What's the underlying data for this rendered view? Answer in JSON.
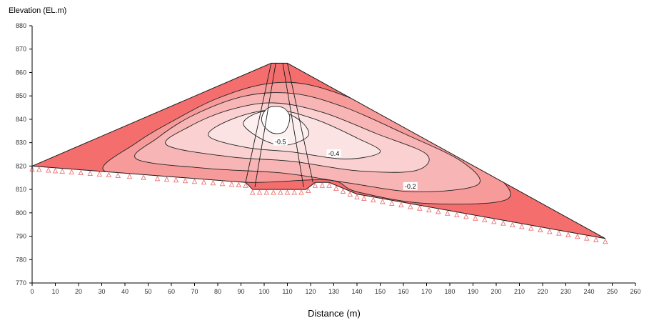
{
  "chart_data": {
    "type": "contour",
    "title": "",
    "xlabel": "Distance (m)",
    "ylabel": "Elevation (EL.m)",
    "xlim": [
      0,
      260
    ],
    "ylim": [
      770,
      880
    ],
    "xticks": [
      0,
      10,
      20,
      30,
      40,
      50,
      60,
      70,
      80,
      90,
      100,
      110,
      120,
      130,
      140,
      150,
      160,
      170,
      180,
      190,
      200,
      210,
      220,
      230,
      240,
      250,
      260
    ],
    "yticks": [
      770,
      780,
      790,
      800,
      810,
      820,
      830,
      840,
      850,
      860,
      870,
      880
    ],
    "dam_outline": [
      {
        "x": 0,
        "y": 820
      },
      {
        "x": 103,
        "y": 864
      },
      {
        "x": 110,
        "y": 864
      },
      {
        "x": 247,
        "y": 789
      },
      {
        "x": 140,
        "y": 808
      },
      {
        "x": 128,
        "y": 813
      },
      {
        "x": 122,
        "y": 813
      },
      {
        "x": 118,
        "y": 810
      },
      {
        "x": 95,
        "y": 810
      },
      {
        "x": 92,
        "y": 813
      },
      {
        "x": 0,
        "y": 820
      }
    ],
    "core_zone": [
      {
        "x": 92,
        "y": 813
      },
      {
        "x": 103,
        "y": 864
      },
      {
        "x": 110,
        "y": 864
      },
      {
        "x": 121,
        "y": 813
      }
    ],
    "core_inner_lines": [
      [
        {
          "x": 96,
          "y": 811
        },
        {
          "x": 105,
          "y": 864
        }
      ],
      [
        {
          "x": 117,
          "y": 811
        },
        {
          "x": 108,
          "y": 864
        }
      ]
    ],
    "contours": [
      {
        "level": -0.1,
        "label": "",
        "fill": "#f69a9a",
        "points": [
          {
            "x": 31,
            "y": 818
          },
          {
            "x": 45,
            "y": 830
          },
          {
            "x": 62,
            "y": 840
          },
          {
            "x": 80,
            "y": 849
          },
          {
            "x": 100,
            "y": 855
          },
          {
            "x": 118,
            "y": 855
          },
          {
            "x": 140,
            "y": 848
          },
          {
            "x": 165,
            "y": 836
          },
          {
            "x": 195,
            "y": 820
          },
          {
            "x": 205,
            "y": 806
          },
          {
            "x": 170,
            "y": 804
          },
          {
            "x": 140,
            "y": 809
          },
          {
            "x": 128,
            "y": 814
          },
          {
            "x": 95,
            "y": 813
          },
          {
            "x": 65,
            "y": 815
          }
        ]
      },
      {
        "level": -0.2,
        "label": "-0.2",
        "fill": "#f8b5b5",
        "points": [
          {
            "x": 45,
            "y": 823
          },
          {
            "x": 54,
            "y": 832
          },
          {
            "x": 70,
            "y": 842
          },
          {
            "x": 92,
            "y": 850
          },
          {
            "x": 113,
            "y": 851
          },
          {
            "x": 135,
            "y": 845
          },
          {
            "x": 160,
            "y": 834
          },
          {
            "x": 185,
            "y": 822
          },
          {
            "x": 192,
            "y": 812
          },
          {
            "x": 165,
            "y": 809
          },
          {
            "x": 135,
            "y": 813
          },
          {
            "x": 108,
            "y": 817
          },
          {
            "x": 75,
            "y": 819
          }
        ]
      },
      {
        "level": -0.3,
        "label": "",
        "fill": "#fad0d0",
        "points": [
          {
            "x": 58,
            "y": 829
          },
          {
            "x": 68,
            "y": 837
          },
          {
            "x": 85,
            "y": 844
          },
          {
            "x": 104,
            "y": 847
          },
          {
            "x": 125,
            "y": 843
          },
          {
            "x": 148,
            "y": 834
          },
          {
            "x": 170,
            "y": 825
          },
          {
            "x": 165,
            "y": 818
          },
          {
            "x": 140,
            "y": 818
          },
          {
            "x": 112,
            "y": 822
          },
          {
            "x": 85,
            "y": 824
          }
        ]
      },
      {
        "level": -0.4,
        "label": "-0.4",
        "fill": "#fce3e3",
        "points": [
          {
            "x": 76,
            "y": 833
          },
          {
            "x": 86,
            "y": 840
          },
          {
            "x": 104,
            "y": 844
          },
          {
            "x": 122,
            "y": 840
          },
          {
            "x": 140,
            "y": 832
          },
          {
            "x": 150,
            "y": 826
          },
          {
            "x": 135,
            "y": 823
          },
          {
            "x": 112,
            "y": 826
          },
          {
            "x": 92,
            "y": 828
          }
        ]
      },
      {
        "level": -0.5,
        "label": "-0.5",
        "fill": "#fdf0f0",
        "points": [
          {
            "x": 91,
            "y": 838
          },
          {
            "x": 98,
            "y": 843
          },
          {
            "x": 108,
            "y": 843
          },
          {
            "x": 116,
            "y": 839
          },
          {
            "x": 119,
            "y": 833
          },
          {
            "x": 110,
            "y": 829
          },
          {
            "x": 100,
            "y": 831
          }
        ]
      },
      {
        "level": -0.6,
        "label": "",
        "fill": "#ffffff",
        "points": [
          {
            "x": 99,
            "y": 841
          },
          {
            "x": 102,
            "y": 845
          },
          {
            "x": 108,
            "y": 845
          },
          {
            "x": 111,
            "y": 841
          },
          {
            "x": 109,
            "y": 835
          },
          {
            "x": 104,
            "y": 834
          },
          {
            "x": 100,
            "y": 837
          }
        ]
      }
    ],
    "label_positions": [
      {
        "text": "-0.5",
        "x": 107,
        "y": 830
      },
      {
        "text": "-0.4",
        "x": 130,
        "y": 825
      },
      {
        "text": "-0.2",
        "x": 163,
        "y": 811
      }
    ],
    "supports_x": [
      0,
      3,
      7,
      10,
      13,
      17,
      21,
      25,
      29,
      33,
      37,
      42,
      48,
      54,
      58,
      62,
      66,
      70,
      74,
      78,
      82,
      86,
      89,
      92,
      95,
      98,
      101,
      104,
      107,
      110,
      113,
      116,
      119,
      122,
      125,
      128,
      131,
      134,
      137,
      140,
      143,
      147,
      151,
      155,
      159,
      163,
      167,
      171,
      175,
      179,
      183,
      187,
      191,
      195,
      199,
      203,
      207,
      211,
      215,
      219,
      223,
      227,
      231,
      235,
      239,
      243,
      247
    ],
    "colors": {
      "outer_fill": "#f46e6e",
      "outline": "#1a1a1a",
      "contour_line": "#222222",
      "support": "#f07070"
    }
  }
}
